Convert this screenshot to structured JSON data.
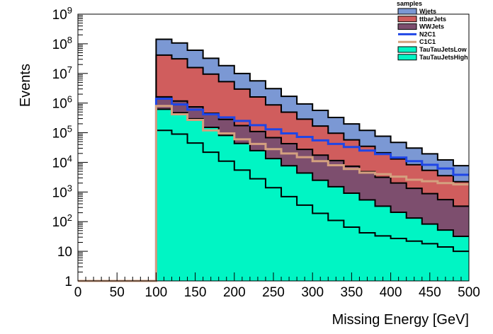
{
  "chart_data": {
    "type": "area",
    "xlabel": "Missing Energy [GeV]",
    "ylabel": "Events",
    "xlim": [
      0,
      500
    ],
    "ylim": [
      1,
      1000000000
    ],
    "yscale": "log",
    "x_ticks": [
      0,
      50,
      100,
      150,
      200,
      250,
      300,
      350,
      400,
      450,
      500
    ],
    "y_ticks": [
      {
        "value": 1,
        "base": "1",
        "exp": ""
      },
      {
        "value": 10,
        "base": "10",
        "exp": ""
      },
      {
        "value": 100,
        "base": "10",
        "exp": "2"
      },
      {
        "value": 1000,
        "base": "10",
        "exp": "3"
      },
      {
        "value": 10000,
        "base": "10",
        "exp": "4"
      },
      {
        "value": 100000,
        "base": "10",
        "exp": "5"
      },
      {
        "value": 1000000,
        "base": "10",
        "exp": "6"
      },
      {
        "value": 10000000,
        "base": "10",
        "exp": "7"
      },
      {
        "value": 100000000,
        "base": "10",
        "exp": "8"
      },
      {
        "value": 1000000000,
        "base": "10",
        "exp": "9"
      }
    ],
    "legend_title": "samples",
    "legend_position": "top-right",
    "bin_edges": [
      0,
      100,
      120,
      140,
      160,
      180,
      200,
      220,
      240,
      260,
      280,
      300,
      320,
      340,
      360,
      380,
      400,
      420,
      440,
      460,
      480,
      500
    ],
    "stacked_series": [
      {
        "name": "Wjets",
        "color": "#7b98d4",
        "values": [
          0,
          100000000,
          75000000,
          45000000,
          23000000,
          13000000,
          7000000,
          4000000,
          2200000,
          1200000,
          650000,
          400000,
          230000,
          140000,
          85000,
          55000,
          34000,
          22000,
          14000,
          8500,
          5500
        ]
      },
      {
        "name": "ttbarJets",
        "color": "#d05d5d",
        "values": [
          0,
          40000000,
          30000000,
          15000000,
          9000000,
          5000000,
          2800000,
          1500000,
          800000,
          450000,
          260000,
          150000,
          85000,
          50000,
          30000,
          18000,
          11000,
          7000,
          4500,
          3000,
          1900
        ]
      },
      {
        "name": "WWJets",
        "color": "#7d4e6e",
        "values": [
          0,
          1000000,
          700000,
          450000,
          300000,
          200000,
          130000,
          85000,
          55000,
          35000,
          23000,
          15000,
          10000,
          6500,
          4300,
          2800,
          1800,
          1200,
          800,
          500,
          300
        ]
      },
      {
        "name": "TauTauJetsLow",
        "color": "#00f5c4",
        "values": [
          0,
          500000,
          380000,
          250000,
          130000,
          70000,
          38000,
          22000,
          12000,
          7000,
          4000,
          2300,
          1400,
          850,
          500,
          300,
          180,
          110,
          65,
          38,
          22
        ]
      },
      {
        "name": "TauTauJetsHigh",
        "color": "#00f5c4",
        "values": [
          0,
          120000,
          90000,
          45000,
          22000,
          11000,
          5500,
          2800,
          1400,
          700,
          360,
          190,
          110,
          65,
          42,
          33,
          27,
          22,
          18,
          14,
          10
        ]
      }
    ],
    "line_series": [
      {
        "name": "N2C1",
        "color": "#1f46e6",
        "values": [
          0,
          1400000,
          900000,
          600000,
          420000,
          330000,
          250000,
          180000,
          130000,
          95000,
          72000,
          55000,
          42000,
          33000,
          25000,
          19000,
          14500,
          11000,
          8300,
          6200,
          3800
        ]
      },
      {
        "name": "C1C1",
        "color": "#d4a07f",
        "values": [
          1,
          800000,
          420000,
          270000,
          120000,
          95000,
          60000,
          42000,
          28000,
          20000,
          15000,
          11000,
          8000,
          6000,
          4500,
          4000,
          3300,
          2600,
          2300,
          2000,
          1800
        ]
      }
    ],
    "legend": [
      {
        "name": "Wjets",
        "kind": "box",
        "color": "#7b98d4"
      },
      {
        "name": "ttbarJets",
        "kind": "box",
        "color": "#d05d5d"
      },
      {
        "name": "WWJets",
        "kind": "box",
        "color": "#7d4e6e"
      },
      {
        "name": "N2C1",
        "kind": "line",
        "color": "#1f46e6"
      },
      {
        "name": "C1C1",
        "kind": "line",
        "color": "#d4a07f"
      },
      {
        "name": "TauTauJetsLow",
        "kind": "box",
        "color": "#00f5c4"
      },
      {
        "name": "TauTauJetsHigh",
        "kind": "box",
        "color": "#00f5c4"
      }
    ]
  }
}
